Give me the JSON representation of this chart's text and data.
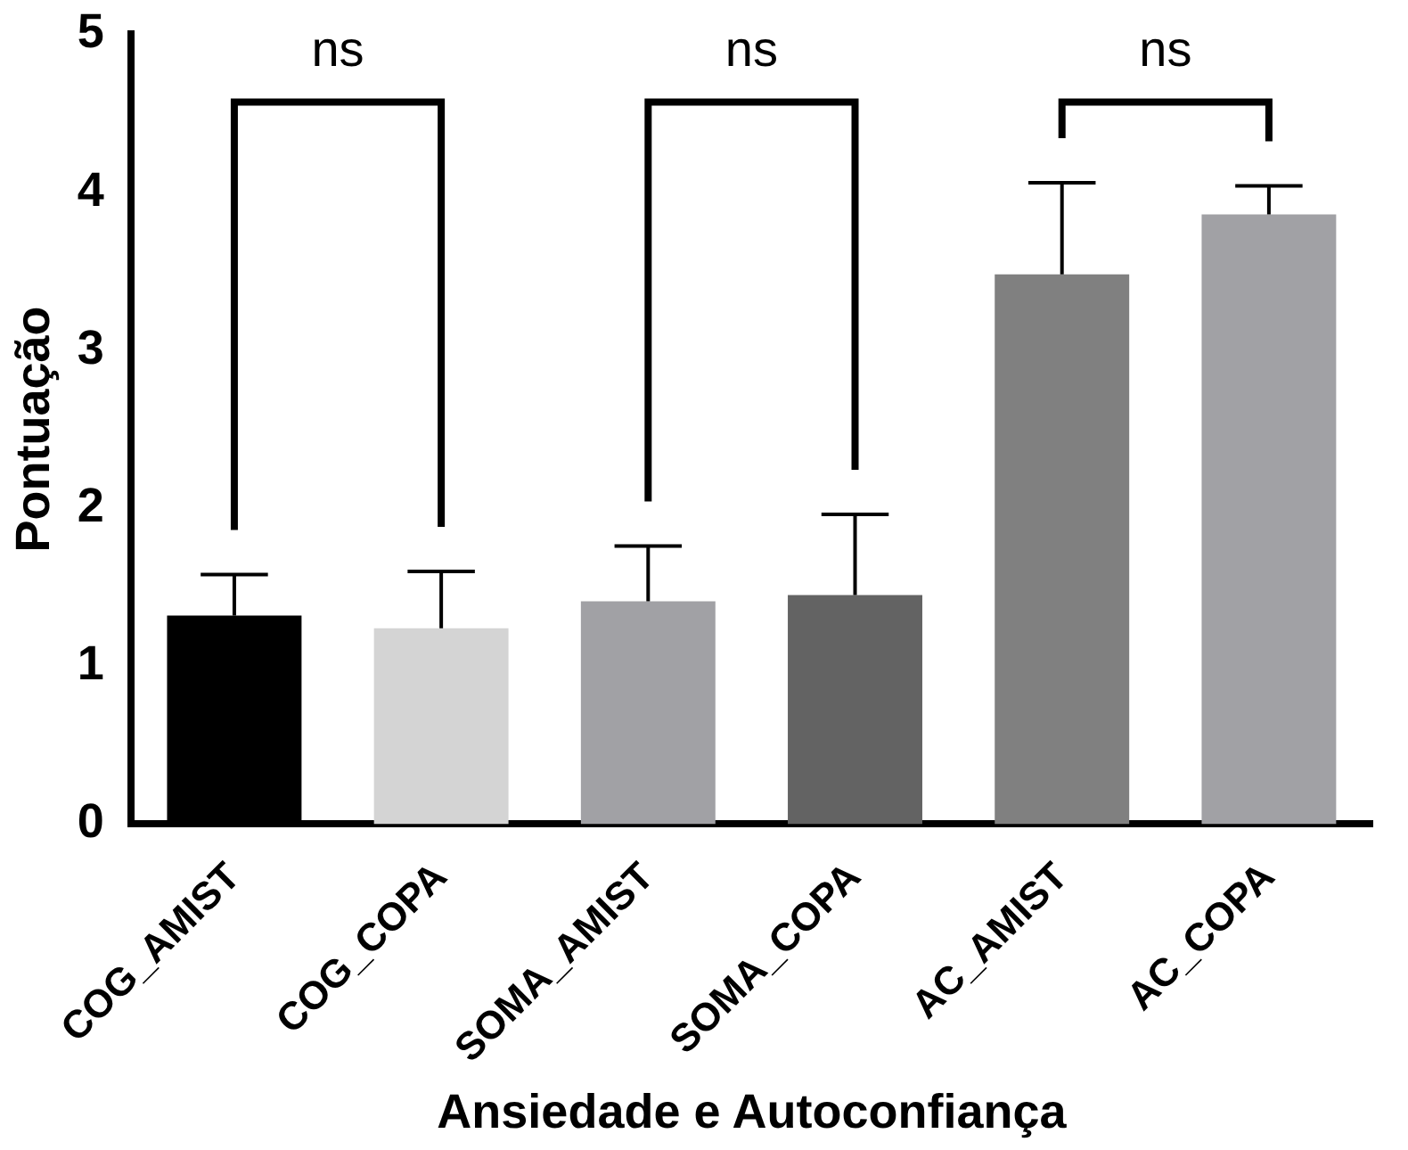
{
  "chart_data": {
    "type": "bar",
    "xlabel": "Ansiedade e Autoconfiança",
    "ylabel": "Pontuação",
    "categories": [
      "COG_AMIST",
      "COG_COPA",
      "SOMA_AMIST",
      "SOMA_COPA",
      "AC_AMIST",
      "AC_COPA"
    ],
    "values": [
      1.32,
      1.24,
      1.41,
      1.45,
      3.48,
      3.86
    ],
    "colors": [
      "#000000",
      "#d4d4d4",
      "#a1a1a5",
      "#636363",
      "#808080",
      "#a1a1a5"
    ],
    "errors": [
      [
        1.32,
        1.58
      ],
      [
        1.24,
        1.6
      ],
      [
        1.41,
        1.76
      ],
      [
        1.45,
        1.96
      ],
      [
        3.48,
        4.06
      ],
      [
        3.86,
        4.04
      ]
    ],
    "ylim": [
      0,
      5
    ],
    "yticks": [
      0,
      1,
      2,
      3,
      4,
      5
    ],
    "grid": false,
    "legend": false,
    "annotations": [
      "ns",
      "ns",
      "ns"
    ]
  }
}
